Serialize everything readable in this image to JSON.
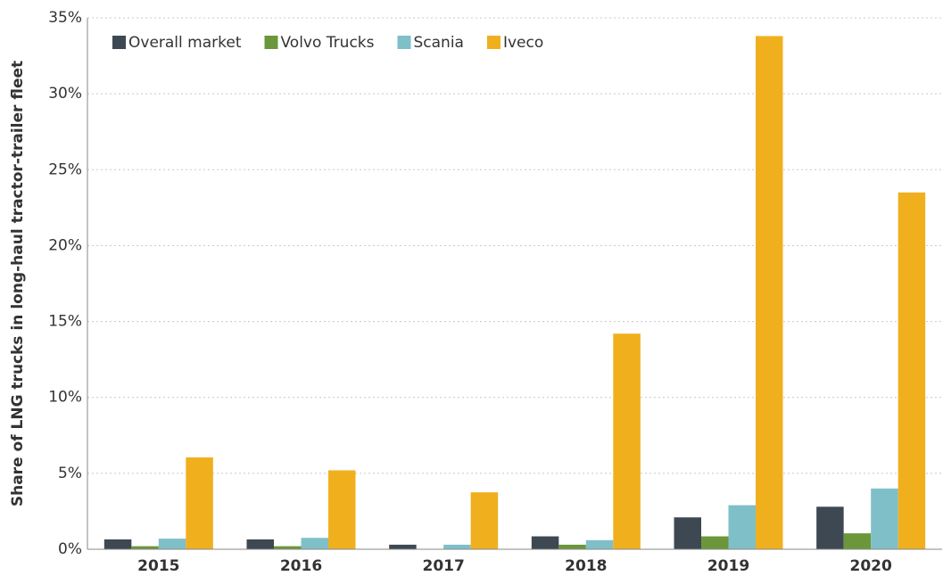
{
  "chart_data": {
    "type": "bar",
    "y_label": "Share of LNG trucks in long-haul tractor-trailer fleet",
    "categories": [
      "2015",
      "2016",
      "2017",
      "2018",
      "2019",
      "2020"
    ],
    "series": [
      {
        "name": "Overall market",
        "color": "#3d4852",
        "values": [
          0.65,
          0.65,
          0.3,
          0.85,
          2.1,
          2.8
        ]
      },
      {
        "name": "Volvo Trucks",
        "color": "#6b973a",
        "values": [
          0.2,
          0.2,
          0,
          0.3,
          0.85,
          1.05
        ]
      },
      {
        "name": "Scania",
        "color": "#7fbfc8",
        "values": [
          0.7,
          0.75,
          0.3,
          0.6,
          2.9,
          4.0
        ]
      },
      {
        "name": "Iveco",
        "color": "#f0b01e",
        "values": [
          6.05,
          5.2,
          3.75,
          14.2,
          33.8,
          23.5
        ]
      }
    ],
    "ylim": [
      0,
      35
    ],
    "yticks": [
      {
        "value": 0,
        "label": "0%"
      },
      {
        "value": 5,
        "label": "5%"
      },
      {
        "value": 10,
        "label": "10%"
      },
      {
        "value": 15,
        "label": "15%"
      },
      {
        "value": 20,
        "label": "20%"
      },
      {
        "value": 25,
        "label": "25%"
      },
      {
        "value": 30,
        "label": "30%"
      },
      {
        "value": 35,
        "label": "35%"
      }
    ],
    "grid": true,
    "legend": "top-left"
  }
}
